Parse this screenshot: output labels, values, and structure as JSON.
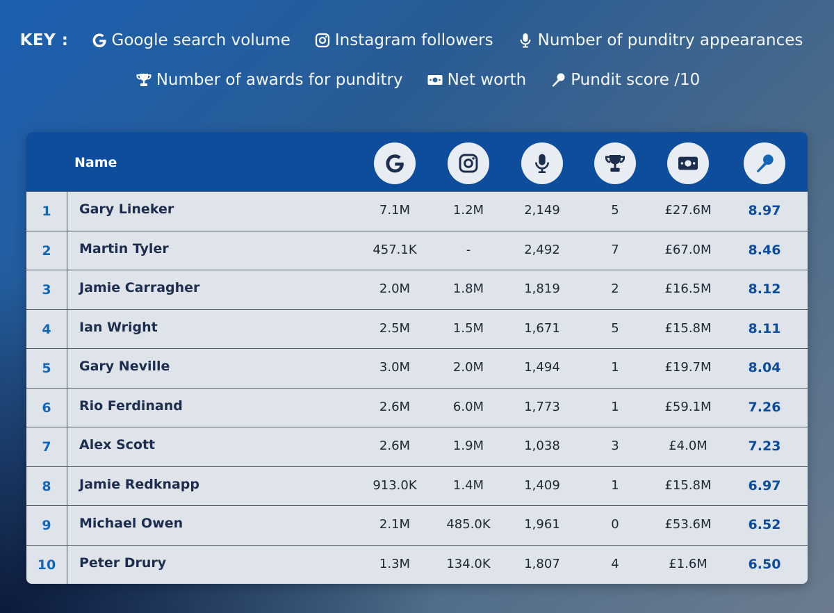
{
  "key": {
    "title": "KEY :",
    "items": [
      {
        "icon": "google-icon",
        "label": "Google search volume"
      },
      {
        "icon": "instagram-icon",
        "label": "Instagram followers"
      },
      {
        "icon": "microphone-icon",
        "label": "Number of punditry appearances"
      },
      {
        "icon": "trophy-icon",
        "label": "Number of awards for punditry"
      },
      {
        "icon": "money-icon",
        "label": "Net worth"
      },
      {
        "icon": "handheld-mic-icon",
        "label": "Pundit score /10"
      }
    ]
  },
  "colors": {
    "header_bg": "#0d4d9c",
    "row_bg": "#dfe3ea",
    "rank_color": "#1466b6",
    "name_color": "#1c2d4d",
    "score_color": "#0d4d9c"
  },
  "chart_data": {
    "type": "table",
    "columns": [
      "",
      "Name",
      "google-icon",
      "instagram-icon",
      "microphone-icon",
      "trophy-icon",
      "money-icon",
      "handheld-mic-icon"
    ],
    "header_name": "Name",
    "rows": [
      {
        "rank": "1",
        "name": "Gary Lineker",
        "google": "7.1M",
        "instagram": "1.2M",
        "appearances": "2,149",
        "awards": "5",
        "net_worth": "£27.6M",
        "score": "8.97"
      },
      {
        "rank": "2",
        "name": "Martin Tyler",
        "google": "457.1K",
        "instagram": "-",
        "appearances": "2,492",
        "awards": "7",
        "net_worth": "£67.0M",
        "score": "8.46"
      },
      {
        "rank": "3",
        "name": "Jamie Carragher",
        "google": "2.0M",
        "instagram": "1.8M",
        "appearances": "1,819",
        "awards": "2",
        "net_worth": "£16.5M",
        "score": "8.12"
      },
      {
        "rank": "4",
        "name": "Ian Wright",
        "google": "2.5M",
        "instagram": "1.5M",
        "appearances": "1,671",
        "awards": "5",
        "net_worth": "£15.8M",
        "score": "8.11"
      },
      {
        "rank": "5",
        "name": "Gary Neville",
        "google": "3.0M",
        "instagram": "2.0M",
        "appearances": "1,494",
        "awards": "1",
        "net_worth": "£19.7M",
        "score": "8.04"
      },
      {
        "rank": "6",
        "name": "Rio Ferdinand",
        "google": "2.6M",
        "instagram": "6.0M",
        "appearances": "1,773",
        "awards": "1",
        "net_worth": "£59.1M",
        "score": "7.26"
      },
      {
        "rank": "7",
        "name": "Alex Scott",
        "google": "2.6M",
        "instagram": "1.9M",
        "appearances": "1,038",
        "awards": "3",
        "net_worth": "£4.0M",
        "score": "7.23"
      },
      {
        "rank": "8",
        "name": "Jamie Redknapp",
        "google": "913.0K",
        "instagram": "1.4M",
        "appearances": "1,409",
        "awards": "1",
        "net_worth": "£15.8M",
        "score": "6.97"
      },
      {
        "rank": "9",
        "name": "Michael Owen",
        "google": "2.1M",
        "instagram": "485.0K",
        "appearances": "1,961",
        "awards": "0",
        "net_worth": "£53.6M",
        "score": "6.52"
      },
      {
        "rank": "10",
        "name": "Peter Drury",
        "google": "1.3M",
        "instagram": "134.0K",
        "appearances": "1,807",
        "awards": "4",
        "net_worth": "£1.6M",
        "score": "6.50"
      }
    ]
  }
}
